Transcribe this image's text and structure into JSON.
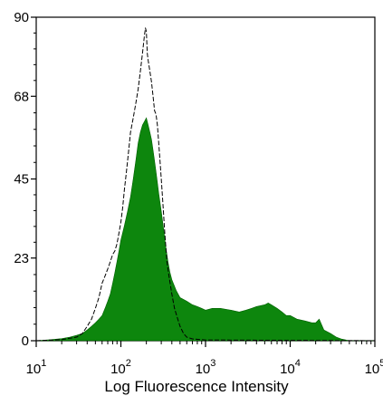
{
  "chart_data": {
    "type": "area",
    "title": "",
    "xlabel": "Log Fluorescence Intensity",
    "ylabel": "",
    "x_scale": "log",
    "xlim": [
      10,
      100000
    ],
    "ylim": [
      0,
      90
    ],
    "x_ticks": [
      {
        "value": 10,
        "base": "10",
        "exp": "1"
      },
      {
        "value": 100,
        "base": "10",
        "exp": "2"
      },
      {
        "value": 1000,
        "base": "10",
        "exp": "3"
      },
      {
        "value": 10000,
        "base": "10",
        "exp": "4"
      },
      {
        "value": 100000,
        "base": "10",
        "exp": "5"
      }
    ],
    "y_ticks": [
      0,
      23,
      45,
      68,
      90
    ],
    "grid": false,
    "legend": "none",
    "series": [
      {
        "style": "filled",
        "color": "#008000",
        "points": [
          [
            10,
            0
          ],
          [
            15,
            0.3
          ],
          [
            20,
            0.6
          ],
          [
            25,
            1
          ],
          [
            30,
            1.5
          ],
          [
            35,
            2
          ],
          [
            40,
            3
          ],
          [
            45,
            4
          ],
          [
            50,
            5
          ],
          [
            55,
            6
          ],
          [
            60,
            7
          ],
          [
            65,
            9
          ],
          [
            70,
            11
          ],
          [
            75,
            13
          ],
          [
            80,
            16
          ],
          [
            85,
            19
          ],
          [
            90,
            22
          ],
          [
            95,
            25
          ],
          [
            100,
            28
          ],
          [
            110,
            32
          ],
          [
            120,
            36
          ],
          [
            130,
            40
          ],
          [
            140,
            45
          ],
          [
            150,
            50
          ],
          [
            160,
            55
          ],
          [
            170,
            58
          ],
          [
            180,
            60
          ],
          [
            190,
            61
          ],
          [
            200,
            62
          ],
          [
            210,
            60
          ],
          [
            220,
            58
          ],
          [
            230,
            56
          ],
          [
            240,
            53
          ],
          [
            250,
            50
          ],
          [
            260,
            47
          ],
          [
            270,
            44
          ],
          [
            280,
            41
          ],
          [
            300,
            36
          ],
          [
            320,
            31
          ],
          [
            340,
            26
          ],
          [
            360,
            22
          ],
          [
            380,
            19
          ],
          [
            400,
            17
          ],
          [
            450,
            14
          ],
          [
            500,
            12
          ],
          [
            600,
            11
          ],
          [
            700,
            10
          ],
          [
            800,
            9.5
          ],
          [
            900,
            9
          ],
          [
            1000,
            8.5
          ],
          [
            1200,
            9
          ],
          [
            1500,
            9
          ],
          [
            2000,
            8.5
          ],
          [
            2500,
            8
          ],
          [
            3000,
            8.5
          ],
          [
            3500,
            9
          ],
          [
            4000,
            9.5
          ],
          [
            5000,
            10
          ],
          [
            5500,
            10.5
          ],
          [
            6000,
            10
          ],
          [
            7000,
            9
          ],
          [
            8000,
            8
          ],
          [
            9000,
            7
          ],
          [
            10000,
            7
          ],
          [
            12000,
            6
          ],
          [
            15000,
            5.5
          ],
          [
            18000,
            5
          ],
          [
            20000,
            5
          ],
          [
            22000,
            6
          ],
          [
            25000,
            3
          ],
          [
            30000,
            2
          ],
          [
            35000,
            1
          ],
          [
            40000,
            0.5
          ],
          [
            50000,
            0
          ],
          [
            100000,
            0
          ]
        ]
      },
      {
        "style": "dashed-outline",
        "color": "#000000",
        "points": [
          [
            10,
            0
          ],
          [
            20,
            0.3
          ],
          [
            30,
            1
          ],
          [
            35,
            2
          ],
          [
            40,
            4
          ],
          [
            45,
            6
          ],
          [
            50,
            9
          ],
          [
            55,
            12
          ],
          [
            60,
            16
          ],
          [
            65,
            18
          ],
          [
            70,
            20
          ],
          [
            75,
            22
          ],
          [
            80,
            24
          ],
          [
            85,
            25
          ],
          [
            90,
            27
          ],
          [
            95,
            30
          ],
          [
            100,
            33
          ],
          [
            105,
            37
          ],
          [
            110,
            42
          ],
          [
            115,
            46
          ],
          [
            120,
            50
          ],
          [
            125,
            54
          ],
          [
            130,
            58
          ],
          [
            140,
            62
          ],
          [
            150,
            66
          ],
          [
            160,
            70
          ],
          [
            170,
            75
          ],
          [
            180,
            80
          ],
          [
            190,
            85
          ],
          [
            195,
            87
          ],
          [
            200,
            86
          ],
          [
            205,
            80
          ],
          [
            210,
            78
          ],
          [
            220,
            75
          ],
          [
            230,
            72
          ],
          [
            240,
            68
          ],
          [
            250,
            64
          ],
          [
            260,
            63
          ],
          [
            270,
            60
          ],
          [
            280,
            55
          ],
          [
            290,
            50
          ],
          [
            300,
            45
          ],
          [
            310,
            40
          ],
          [
            320,
            35
          ],
          [
            330,
            30
          ],
          [
            340,
            26
          ],
          [
            350,
            22
          ],
          [
            370,
            18
          ],
          [
            400,
            13
          ],
          [
            430,
            9
          ],
          [
            470,
            6
          ],
          [
            500,
            4
          ],
          [
            550,
            2
          ],
          [
            600,
            1
          ],
          [
            700,
            0.5
          ],
          [
            1000,
            0.2
          ],
          [
            100000,
            0
          ]
        ]
      }
    ]
  }
}
